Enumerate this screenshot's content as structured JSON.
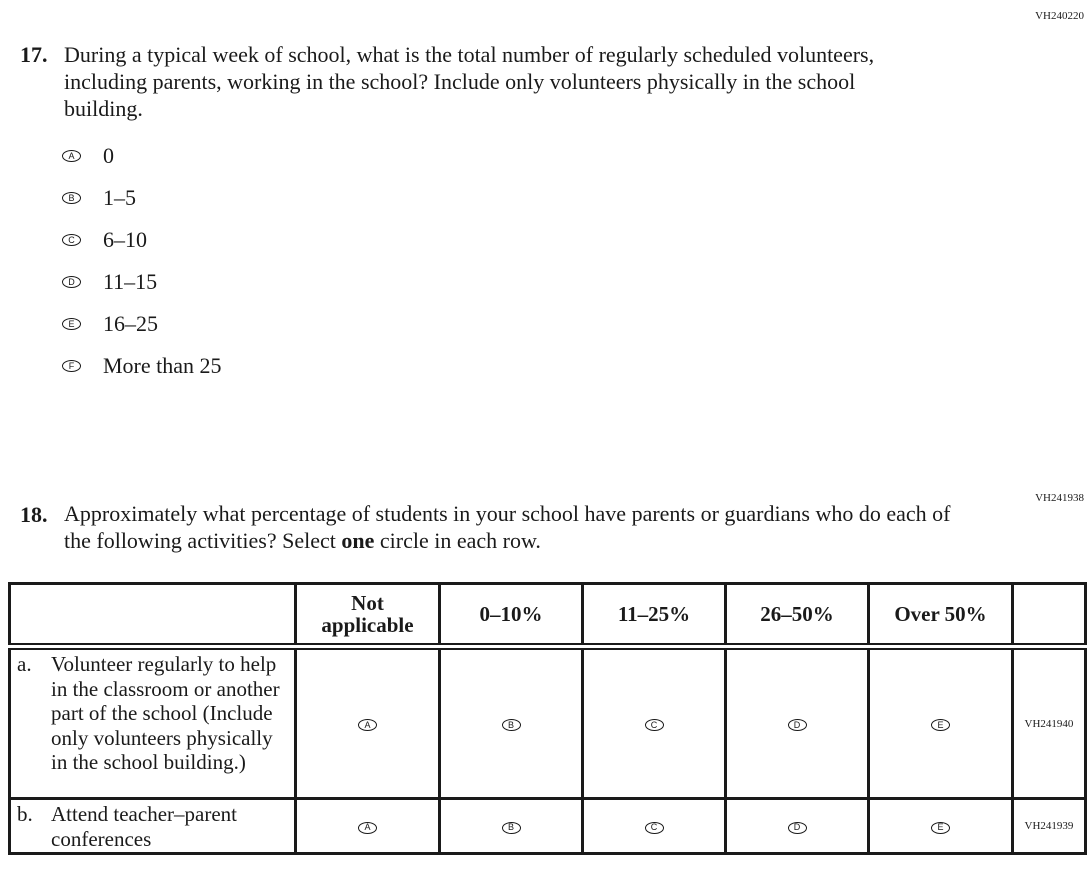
{
  "q17": {
    "code": "VH240220",
    "number": "17.",
    "text": "During a typical week of school, what is the total number of regularly scheduled volunteers, including parents, working in the school? Include only volunteers physically in the school building.",
    "options": [
      {
        "letter": "A",
        "label": "0"
      },
      {
        "letter": "B",
        "label": "1–5"
      },
      {
        "letter": "C",
        "label": "6–10"
      },
      {
        "letter": "D",
        "label": "11–15"
      },
      {
        "letter": "E",
        "label": "16–25"
      },
      {
        "letter": "F",
        "label": "More than 25"
      }
    ]
  },
  "q18": {
    "code": "VH241938",
    "number": "18.",
    "text_before": "Approximately what percentage of students in your school have parents or guardians who do each of the following activities? Select ",
    "text_bold": "one",
    "text_after": " circle in each row.",
    "columns": [
      "Not applicable",
      "0–10%",
      "11–25%",
      "26–50%",
      "Over 50%"
    ],
    "letters": [
      "A",
      "B",
      "C",
      "D",
      "E"
    ],
    "rows": [
      {
        "letter": "a.",
        "label": "Volunteer regularly to help in the classroom or another part of the school (Include only volunteers physically in the school building.)",
        "code": "VH241940"
      },
      {
        "letter": "b.",
        "label": "Attend teacher–parent conferences",
        "code": "VH241939"
      }
    ]
  }
}
